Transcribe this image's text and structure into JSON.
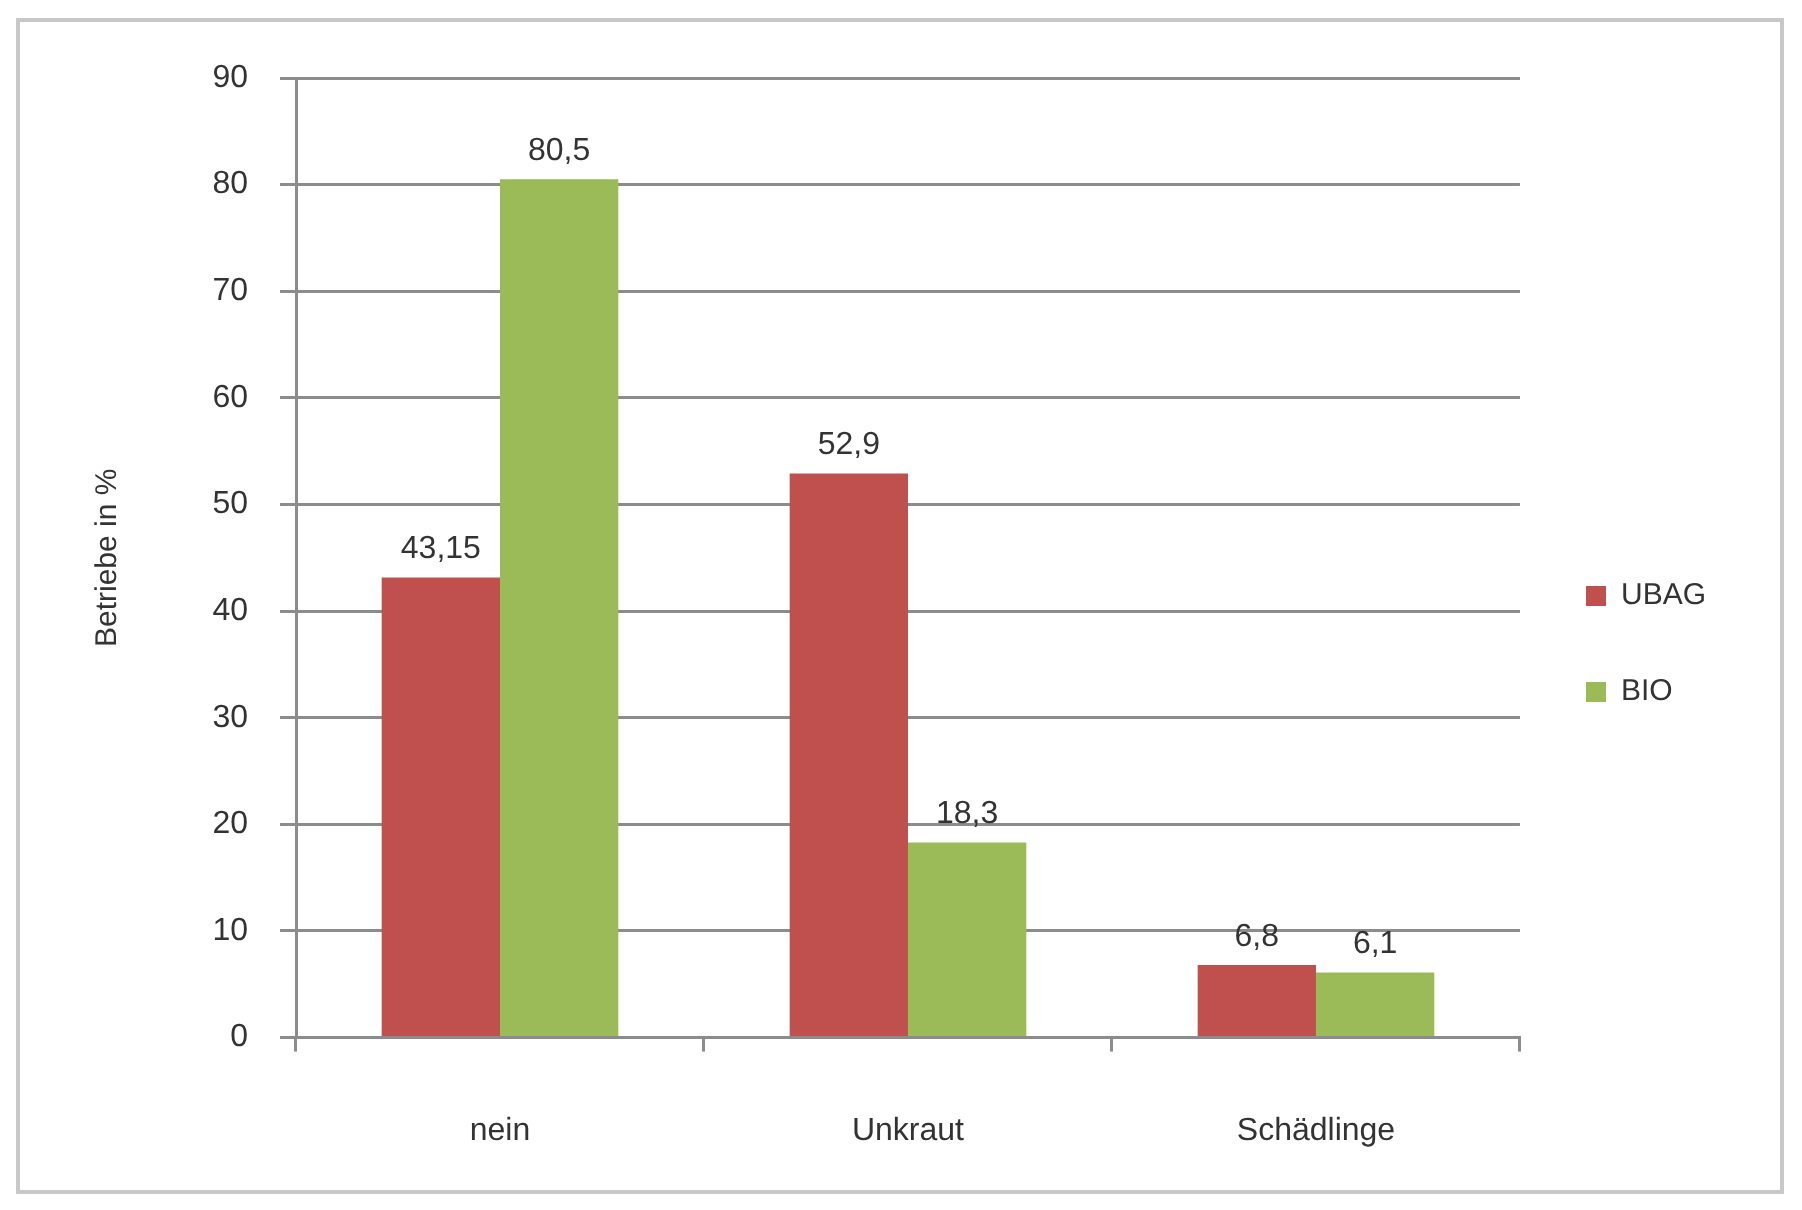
{
  "chart_data": {
    "type": "bar",
    "categories": [
      "nein",
      "Unkraut",
      "Schädlinge"
    ],
    "ylabel": "Betriebe in %",
    "series": [
      {
        "name": "UBAG",
        "color": "#c0504d",
        "values": [
          43.15,
          52.9,
          6.8
        ],
        "value_labels": [
          "43,15",
          "52,9",
          "6,8"
        ]
      },
      {
        "name": "BIO",
        "color": "#9bbb59",
        "values": [
          80.5,
          18.3,
          6.1
        ],
        "value_labels": [
          "80,5",
          "18,3",
          "6,1"
        ]
      }
    ],
    "ylim": [
      0,
      90
    ],
    "yticks": [
      0,
      10,
      20,
      30,
      40,
      50,
      60,
      70,
      80,
      90
    ],
    "grid": "y",
    "legend": "right"
  }
}
